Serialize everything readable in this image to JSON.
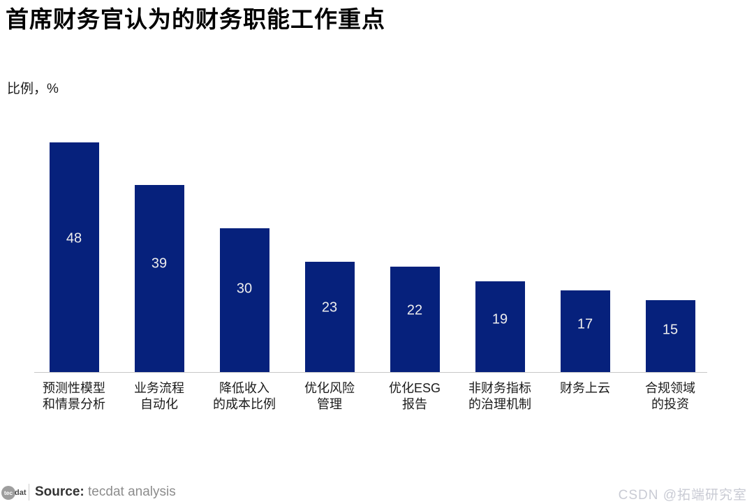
{
  "header": {
    "title": "首席财务官认为的财务职能工作重点"
  },
  "chart_data": {
    "type": "bar",
    "title": "首席财务官认为的财务职能工作重点",
    "xlabel": "",
    "ylabel": "比例，%",
    "categories": [
      "预测性模型\n和情景分析",
      "业务流程\n自动化",
      "降低收入\n的成本比例",
      "优化风险\n管理",
      "优化ESG\n报告",
      "非财务指标\n的治理机制",
      "财务上云",
      "合规领域\n的投资"
    ],
    "values": [
      48,
      39,
      30,
      23,
      22,
      19,
      17,
      15
    ],
    "ylim": [
      0,
      50
    ],
    "grid": false,
    "legend": "none",
    "bar_color": "#06217C",
    "value_label_color": "#EDEDED",
    "axis_line_color": "#C8C8C8"
  },
  "footer": {
    "logo": {
      "circle_text": "tec",
      "suffix_text": "dat"
    },
    "source_label": "Source:",
    "source_value": "tecdat analysis"
  },
  "watermark": {
    "text": "CSDN @拓端研究室"
  }
}
